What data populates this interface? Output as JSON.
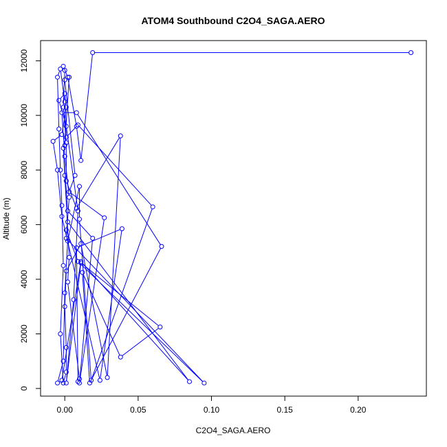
{
  "chart_data": {
    "type": "line",
    "title": "ATOM4 Southbound C2O4_SAGA.AERO",
    "xlabel": "C2O4_SAGA.AERO",
    "ylabel": "Altitude (m)",
    "xlim": [
      -0.0165,
      0.2465
    ],
    "ylim": [
      -280,
      12740
    ],
    "x_ticks": [
      0.0,
      0.05,
      0.1,
      0.15,
      0.2
    ],
    "x_tick_labels": [
      "0.00",
      "0.05",
      "0.10",
      "0.15",
      "0.20"
    ],
    "y_ticks": [
      0,
      2000,
      4000,
      6000,
      8000,
      10000,
      12000
    ],
    "y_tick_labels": [
      "0",
      "2000",
      "4000",
      "6000",
      "8000",
      "10000",
      "12000"
    ],
    "grid": false,
    "legend": "none",
    "series": [
      {
        "color": "#0000ff",
        "marker": "open-circle",
        "points": [
          [
            0.236,
            12300
          ],
          [
            0.019,
            12300
          ],
          [
            0.011,
            8350
          ],
          [
            0.008,
            9600
          ],
          [
            0.002,
            11400
          ],
          [
            -0.001,
            11800
          ],
          [
            0.0,
            11650
          ],
          [
            -0.001,
            10300
          ],
          [
            0.001,
            9000
          ],
          [
            0.001,
            7600
          ],
          [
            0.008,
            6600
          ],
          [
            0.038,
            9250
          ],
          [
            0.029,
            400
          ],
          [
            0.011,
            5300
          ],
          [
            0.001,
            4300
          ],
          [
            0.0,
            3000
          ],
          [
            0.001,
            1500
          ],
          [
            0.001,
            600
          ],
          [
            -0.001,
            200
          ],
          [
            -0.003,
            2000
          ],
          [
            -0.001,
            4500
          ],
          [
            -0.002,
            6700
          ],
          [
            -0.003,
            8000
          ],
          [
            -0.004,
            9500
          ],
          [
            -0.005,
            11400
          ],
          [
            -0.003,
            11700
          ],
          [
            0.0,
            10500
          ],
          [
            0.001,
            9200
          ],
          [
            0.009,
            9650
          ],
          [
            0.06,
            6650
          ],
          [
            0.018,
            300
          ],
          [
            0.01,
            6200
          ],
          [
            0.01,
            7400
          ],
          [
            0.002,
            5400
          ],
          [
            0.0,
            3500
          ],
          [
            -0.001,
            1000
          ],
          [
            -0.005,
            200
          ],
          [
            -0.002,
            300
          ],
          [
            0.011,
            4650
          ],
          [
            0.085,
            250
          ],
          [
            0.002,
            6100
          ],
          [
            0.001,
            5800
          ],
          [
            0.009,
            4650
          ],
          [
            0.095,
            200
          ],
          [
            0.001,
            5500
          ],
          [
            0.003,
            7000
          ],
          [
            0.0,
            8500
          ],
          [
            -0.002,
            10100
          ],
          [
            0.008,
            10100
          ],
          [
            0.066,
            5200
          ],
          [
            0.017,
            200
          ],
          [
            0.012,
            4250
          ],
          [
            0.038,
            1150
          ],
          [
            0.065,
            2250
          ],
          [
            0.011,
            4600
          ],
          [
            0.001,
            200
          ],
          [
            0.006,
            3250
          ],
          [
            0.009,
            6500
          ],
          [
            0.001,
            9600
          ],
          [
            -0.004,
            10550
          ],
          [
            0.0,
            10800
          ],
          [
            0.001,
            10300
          ],
          [
            -0.002,
            9300
          ],
          [
            -0.008,
            9050
          ],
          [
            -0.005,
            8000
          ],
          [
            -0.002,
            6300
          ],
          [
            0.024,
            300
          ],
          [
            0.039,
            5850
          ],
          [
            0.008,
            5150
          ],
          [
            0.009,
            250
          ],
          [
            0.01,
            350
          ],
          [
            0.002,
            3900
          ],
          [
            0.003,
            4800
          ],
          [
            0.0,
            7800
          ],
          [
            -0.001,
            8800
          ],
          [
            0.002,
            6500
          ],
          [
            0.019,
            5500
          ],
          [
            0.01,
            200
          ],
          [
            0.027,
            6250
          ],
          [
            0.003,
            7200
          ],
          [
            0.007,
            7800
          ],
          [
            0.0,
            11300
          ],
          [
            0.003,
            11400
          ],
          [
            0.0,
            8900
          ]
        ]
      }
    ]
  }
}
